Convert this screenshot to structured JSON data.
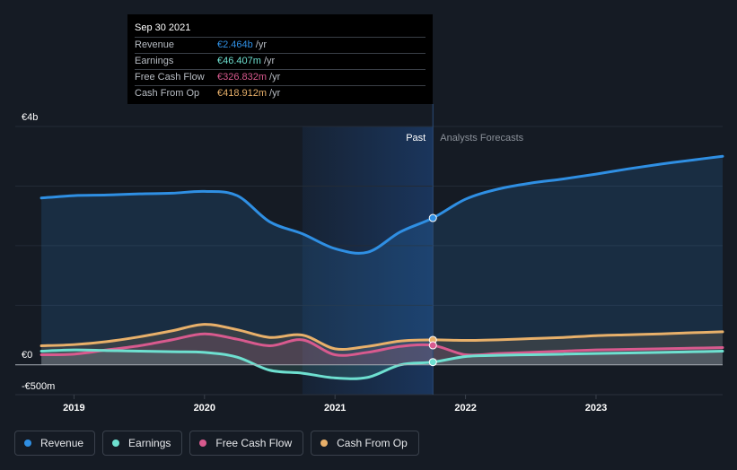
{
  "tooltip": {
    "date": "Sep 30 2021",
    "rows": [
      {
        "name": "Revenue",
        "value": "€2.464b",
        "unit": "/yr",
        "color": "#2f8fe3"
      },
      {
        "name": "Earnings",
        "value": "€46.407m",
        "unit": "/yr",
        "color": "#6ee0d0"
      },
      {
        "name": "Free Cash Flow",
        "value": "€326.832m",
        "unit": "/yr",
        "color": "#d85a8e"
      },
      {
        "name": "Cash From Op",
        "value": "€418.912m",
        "unit": "/yr",
        "color": "#e8b06a"
      }
    ]
  },
  "labels": {
    "past": "Past",
    "forecast": "Analysts Forecasts"
  },
  "legend": [
    {
      "name": "Revenue",
      "color": "#2f8fe3"
    },
    {
      "name": "Earnings",
      "color": "#6ee0d0"
    },
    {
      "name": "Free Cash Flow",
      "color": "#d85a8e"
    },
    {
      "name": "Cash From Op",
      "color": "#e8b06a"
    }
  ],
  "chart_data": {
    "type": "line",
    "ylim": [
      -500,
      4000
    ],
    "y_tick_labels": [
      {
        "value": 4000,
        "label": "€4b"
      },
      {
        "value": 0,
        "label": "€0"
      },
      {
        "value": -500,
        "label": "-€500m"
      }
    ],
    "x_tick_labels": [
      {
        "value": 2019,
        "label": "2019"
      },
      {
        "value": 2020,
        "label": "2020"
      },
      {
        "value": 2021,
        "label": "2021"
      },
      {
        "value": 2022,
        "label": "2022"
      },
      {
        "value": 2023,
        "label": "2023"
      }
    ],
    "xlim": [
      2018.55,
      2023.97
    ],
    "past_end": 2021.75,
    "highlight_start": 2020.75,
    "series": [
      {
        "name": "Revenue",
        "color": "#2f8fe3",
        "points": [
          [
            2018.75,
            2800
          ],
          [
            2019.0,
            2840
          ],
          [
            2019.25,
            2850
          ],
          [
            2019.5,
            2870
          ],
          [
            2019.75,
            2880
          ],
          [
            2020.0,
            2910
          ],
          [
            2020.25,
            2840
          ],
          [
            2020.5,
            2400
          ],
          [
            2020.75,
            2200
          ],
          [
            2021.0,
            1950
          ],
          [
            2021.25,
            1890
          ],
          [
            2021.5,
            2230
          ],
          [
            2021.75,
            2464
          ],
          [
            2022.0,
            2780
          ],
          [
            2022.25,
            2950
          ],
          [
            2022.5,
            3050
          ],
          [
            2022.75,
            3120
          ],
          [
            2023.0,
            3200
          ],
          [
            2023.25,
            3290
          ],
          [
            2023.5,
            3370
          ],
          [
            2023.75,
            3440
          ],
          [
            2023.97,
            3500
          ]
        ]
      },
      {
        "name": "Cash From Op",
        "color": "#e8b06a",
        "points": [
          [
            2018.75,
            320
          ],
          [
            2019.0,
            340
          ],
          [
            2019.25,
            390
          ],
          [
            2019.5,
            470
          ],
          [
            2019.75,
            570
          ],
          [
            2020.0,
            680
          ],
          [
            2020.25,
            590
          ],
          [
            2020.5,
            460
          ],
          [
            2020.75,
            500
          ],
          [
            2021.0,
            270
          ],
          [
            2021.25,
            310
          ],
          [
            2021.5,
            400
          ],
          [
            2021.75,
            418.912
          ],
          [
            2022.0,
            410
          ],
          [
            2022.25,
            420
          ],
          [
            2022.5,
            440
          ],
          [
            2022.75,
            460
          ],
          [
            2023.0,
            490
          ],
          [
            2023.25,
            505
          ],
          [
            2023.5,
            520
          ],
          [
            2023.75,
            540
          ],
          [
            2023.97,
            555
          ]
        ]
      },
      {
        "name": "Free Cash Flow",
        "color": "#d85a8e",
        "points": [
          [
            2018.75,
            170
          ],
          [
            2019.0,
            180
          ],
          [
            2019.25,
            250
          ],
          [
            2019.5,
            320
          ],
          [
            2019.75,
            420
          ],
          [
            2020.0,
            520
          ],
          [
            2020.25,
            430
          ],
          [
            2020.5,
            320
          ],
          [
            2020.75,
            420
          ],
          [
            2021.0,
            170
          ],
          [
            2021.25,
            210
          ],
          [
            2021.5,
            310
          ],
          [
            2021.75,
            326.832
          ],
          [
            2022.0,
            170
          ],
          [
            2022.25,
            190
          ],
          [
            2022.5,
            210
          ],
          [
            2022.75,
            230
          ],
          [
            2023.0,
            250
          ],
          [
            2023.25,
            260
          ],
          [
            2023.5,
            270
          ],
          [
            2023.75,
            280
          ],
          [
            2023.97,
            290
          ]
        ]
      },
      {
        "name": "Earnings",
        "color": "#6ee0d0",
        "points": [
          [
            2018.75,
            230
          ],
          [
            2019.0,
            250
          ],
          [
            2019.25,
            240
          ],
          [
            2019.5,
            230
          ],
          [
            2019.75,
            220
          ],
          [
            2020.0,
            210
          ],
          [
            2020.25,
            130
          ],
          [
            2020.5,
            -90
          ],
          [
            2020.75,
            -140
          ],
          [
            2021.0,
            -220
          ],
          [
            2021.25,
            -210
          ],
          [
            2021.5,
            0
          ],
          [
            2021.75,
            46.407
          ],
          [
            2022.0,
            140
          ],
          [
            2022.25,
            160
          ],
          [
            2022.5,
            170
          ],
          [
            2022.75,
            180
          ],
          [
            2023.0,
            190
          ],
          [
            2023.25,
            200
          ],
          [
            2023.5,
            210
          ],
          [
            2023.75,
            220
          ],
          [
            2023.97,
            230
          ]
        ]
      }
    ]
  }
}
